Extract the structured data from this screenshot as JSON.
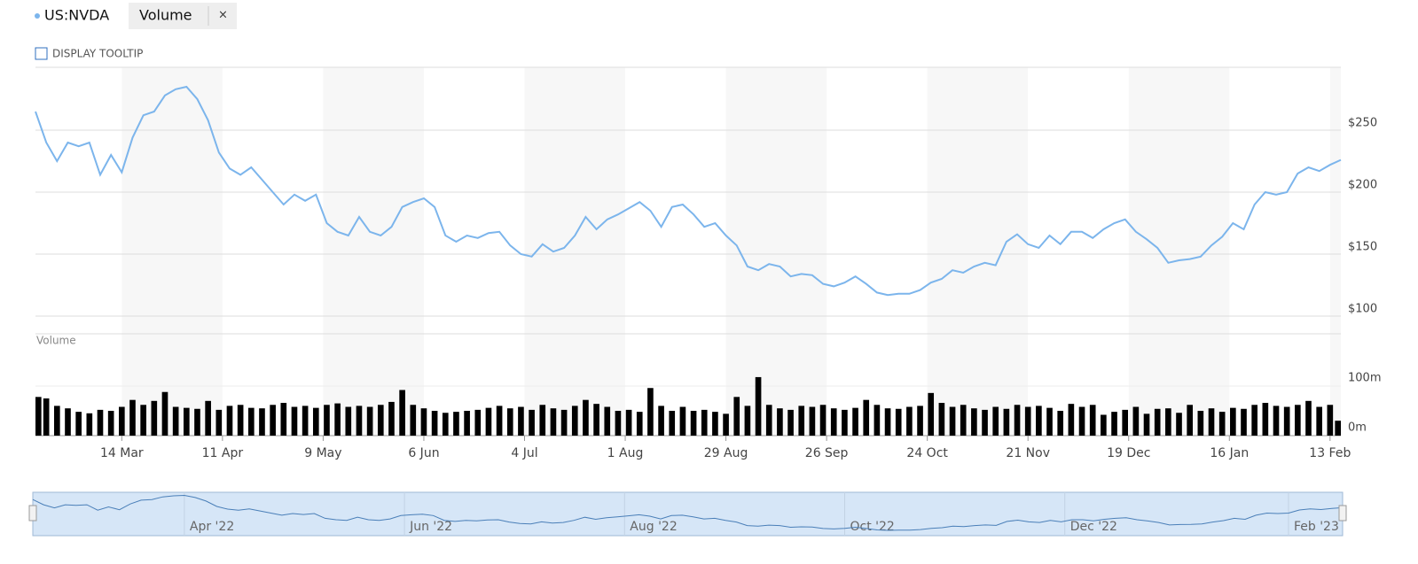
{
  "header": {
    "close": "×",
    "tooltip": "DISPLAY TOOLTIP"
  },
  "chart_data": {
    "type": "line",
    "x": [
      "2022-02-18",
      "2022-02-21",
      "2022-02-24",
      "2022-02-27",
      "2022-03-02",
      "2022-03-05",
      "2022-03-08",
      "2022-03-11",
      "2022-03-14",
      "2022-03-17",
      "2022-03-20",
      "2022-03-23",
      "2022-03-26",
      "2022-03-29",
      "2022-04-01",
      "2022-04-04",
      "2022-04-07",
      "2022-04-10",
      "2022-04-13",
      "2022-04-16",
      "2022-04-19",
      "2022-04-22",
      "2022-04-25",
      "2022-04-28",
      "2022-05-01",
      "2022-05-04",
      "2022-05-07",
      "2022-05-10",
      "2022-05-13",
      "2022-05-16",
      "2022-05-19",
      "2022-05-22",
      "2022-05-25",
      "2022-05-28",
      "2022-05-31",
      "2022-06-03",
      "2022-06-06",
      "2022-06-09",
      "2022-06-12",
      "2022-06-15",
      "2022-06-18",
      "2022-06-21",
      "2022-06-24",
      "2022-06-27",
      "2022-06-30",
      "2022-07-03",
      "2022-07-06",
      "2022-07-09",
      "2022-07-12",
      "2022-07-15",
      "2022-07-18",
      "2022-07-21",
      "2022-07-24",
      "2022-07-27",
      "2022-07-30",
      "2022-08-02",
      "2022-08-05",
      "2022-08-08",
      "2022-08-11",
      "2022-08-14",
      "2022-08-17",
      "2022-08-20",
      "2022-08-23",
      "2022-08-26",
      "2022-08-29",
      "2022-09-01",
      "2022-09-04",
      "2022-09-07",
      "2022-09-10",
      "2022-09-13",
      "2022-09-16",
      "2022-09-19",
      "2022-09-22",
      "2022-09-25",
      "2022-09-28",
      "2022-10-01",
      "2022-10-04",
      "2022-10-07",
      "2022-10-10",
      "2022-10-13",
      "2022-10-16",
      "2022-10-19",
      "2022-10-22",
      "2022-10-25",
      "2022-10-28",
      "2022-10-31",
      "2022-11-03",
      "2022-11-06",
      "2022-11-09",
      "2022-11-12",
      "2022-11-15",
      "2022-11-18",
      "2022-11-21",
      "2022-11-24",
      "2022-11-27",
      "2022-11-30",
      "2022-12-03",
      "2022-12-06",
      "2022-12-09",
      "2022-12-12",
      "2022-12-15",
      "2022-12-18",
      "2022-12-21",
      "2022-12-24",
      "2022-12-27",
      "2022-12-30",
      "2023-01-02",
      "2023-01-05",
      "2023-01-08",
      "2023-01-11",
      "2023-01-14",
      "2023-01-17",
      "2023-01-20",
      "2023-01-23",
      "2023-01-26",
      "2023-01-29",
      "2023-02-01",
      "2023-02-04",
      "2023-02-07",
      "2023-02-10",
      "2023-02-13",
      "2023-02-16"
    ],
    "xlim": [
      "2022-02-18",
      "2023-02-16"
    ],
    "xticks": [
      {
        "value": "2022-03-14",
        "label": "14 Mar"
      },
      {
        "value": "2022-04-11",
        "label": "11 Apr"
      },
      {
        "value": "2022-05-09",
        "label": "9 May"
      },
      {
        "value": "2022-06-06",
        "label": "6 Jun"
      },
      {
        "value": "2022-07-04",
        "label": "4 Jul"
      },
      {
        "value": "2022-08-01",
        "label": "1 Aug"
      },
      {
        "value": "2022-08-29",
        "label": "29 Aug"
      },
      {
        "value": "2022-09-26",
        "label": "26 Sep"
      },
      {
        "value": "2022-10-24",
        "label": "24 Oct"
      },
      {
        "value": "2022-11-21",
        "label": "21 Nov"
      },
      {
        "value": "2022-12-19",
        "label": "19 Dec"
      },
      {
        "value": "2023-01-16",
        "label": "16 Jan"
      },
      {
        "value": "2023-02-13",
        "label": "13 Feb"
      }
    ],
    "series": [
      {
        "name": "US:NVDA",
        "color": "#7cb5ec",
        "values": [
          265,
          240,
          225,
          240,
          237,
          240,
          214,
          230,
          216,
          244,
          262,
          265,
          278,
          283,
          285,
          275,
          258,
          232,
          219,
          214,
          220,
          210,
          200,
          190,
          198,
          193,
          198,
          175,
          168,
          165,
          180,
          168,
          165,
          172,
          188,
          192,
          195,
          188,
          165,
          160,
          165,
          163,
          167,
          168,
          157,
          150,
          148,
          158,
          152,
          155,
          165,
          180,
          170,
          178,
          182,
          187,
          192,
          185,
          172,
          188,
          190,
          182,
          172,
          175,
          165,
          157,
          140,
          137,
          142,
          140,
          132,
          134,
          133,
          126,
          124,
          127,
          132,
          126,
          119,
          117,
          118,
          118,
          121,
          127,
          130,
          137,
          135,
          140,
          143,
          141,
          160,
          166,
          158,
          155,
          165,
          158,
          168,
          168,
          163,
          170,
          175,
          178,
          168,
          162,
          155,
          143,
          145,
          146,
          148,
          157,
          164,
          175,
          170,
          190,
          200,
          198,
          200,
          215,
          220,
          217,
          222,
          226
        ]
      }
    ],
    "ylim": [
      100,
      300
    ],
    "yticks": [
      {
        "value": 100,
        "label": "$100"
      },
      {
        "value": 150,
        "label": "$150"
      },
      {
        "value": 200,
        "label": "$200"
      },
      {
        "value": 250,
        "label": "$250"
      }
    ],
    "grid": true,
    "volume": {
      "title": "Volume",
      "color": "#000000",
      "values": [
        78,
        75,
        60,
        55,
        48,
        45,
        52,
        50,
        58,
        72,
        62,
        70,
        88,
        58,
        56,
        54,
        70,
        52,
        60,
        62,
        56,
        55,
        62,
        66,
        58,
        60,
        56,
        62,
        65,
        58,
        60,
        58,
        62,
        68,
        92,
        62,
        55,
        50,
        46,
        48,
        50,
        52,
        56,
        60,
        55,
        58,
        52,
        62,
        55,
        52,
        60,
        72,
        64,
        58,
        50,
        52,
        48,
        96,
        60,
        50,
        58,
        50,
        52,
        48,
        44,
        78,
        60,
        118,
        62,
        55,
        52,
        60,
        58,
        62,
        55,
        52,
        56,
        72,
        62,
        55,
        54,
        58,
        60,
        86,
        66,
        58,
        62,
        55,
        52,
        58,
        54,
        62,
        58,
        60,
        56,
        50,
        64,
        58,
        62,
        42,
        48,
        52,
        58,
        44,
        54,
        55,
        46,
        62,
        50,
        55,
        48,
        56,
        54,
        62,
        66,
        60,
        58,
        62,
        70,
        58,
        62,
        30
      ],
      "ylim": [
        0,
        200
      ],
      "yticks": [
        {
          "value": 0,
          "label": "0m"
        },
        {
          "value": 100,
          "label": "100m"
        }
      ]
    },
    "navigator": {
      "xticks": [
        {
          "value": "2022-04-01",
          "label": "Apr '22"
        },
        {
          "value": "2022-06-01",
          "label": "Jun '22"
        },
        {
          "value": "2022-08-01",
          "label": "Aug '22"
        },
        {
          "value": "2022-10-01",
          "label": "Oct '22"
        },
        {
          "value": "2022-12-01",
          "label": "Dec '22"
        },
        {
          "value": "2023-02-01",
          "label": "Feb '23"
        }
      ]
    }
  }
}
